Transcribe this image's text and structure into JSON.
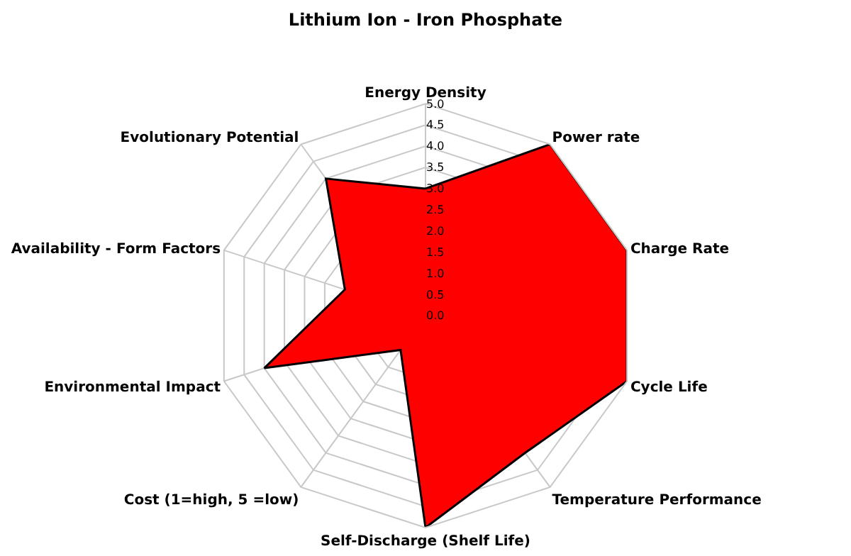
{
  "chart_data": {
    "type": "radar",
    "title": "Lithium Ion - Iron Phosphate",
    "categories": [
      "Energy Density",
      "Power rate",
      "Charge Rate",
      "Cycle Life",
      "Temperature Performance",
      "Self-Discharge (Shelf Life)",
      "Cost (1=high, 5 =low)",
      "Environmental Impact",
      "Availability - Form Factors",
      "Evolutionary Potential"
    ],
    "series": [
      {
        "color": "#ff0000",
        "values": [
          3.0,
          5.0,
          5.0,
          5.0,
          4.0,
          5.0,
          1.0,
          4.0,
          2.0,
          4.0
        ]
      }
    ],
    "ylim": [
      0,
      5
    ],
    "yticks": [
      {
        "value": 0,
        "label": "0.0"
      },
      {
        "value": 0.5,
        "label": "0.5"
      },
      {
        "value": 1,
        "label": "1.0"
      },
      {
        "value": 1.5,
        "label": "1.5"
      },
      {
        "value": 2,
        "label": "2.0"
      },
      {
        "value": 2.5,
        "label": "2.5"
      },
      {
        "value": 3,
        "label": "3.0"
      },
      {
        "value": 3.5,
        "label": "3.5"
      },
      {
        "value": 4,
        "label": "4.0"
      },
      {
        "value": 4.5,
        "label": "4.5"
      },
      {
        "value": 5,
        "label": "5.0"
      }
    ],
    "grid": true
  }
}
